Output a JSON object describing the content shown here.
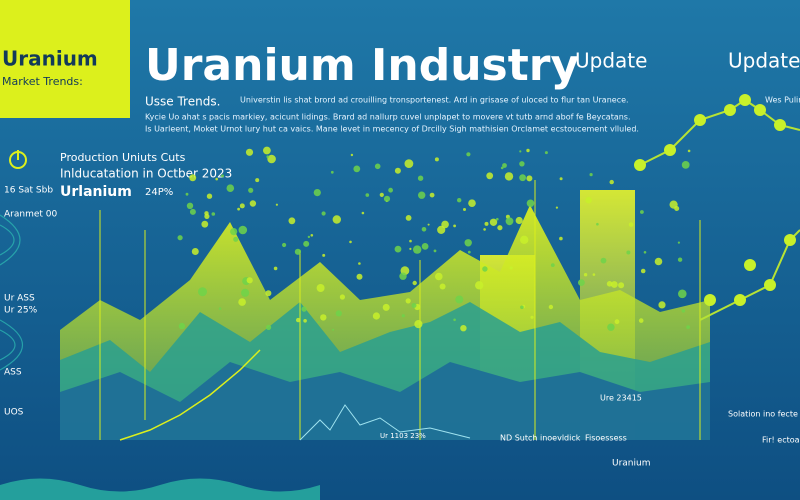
{
  "sidebar_box": {
    "title": "Uranium",
    "subtitle": "Market Trends:"
  },
  "header": {
    "title": "Uranium Industry",
    "tag": "Update",
    "tag_right": "Update"
  },
  "intro": {
    "heading": "Usse Trends.",
    "lines": [
      "Universtin lis shat brord ad crouilling tronsportenest. Ard in grisase of uloced to flur tan Uranece.",
      "Kycie Uo ahat s pacis markiey, acicunt lidings. Brard ad nallurp cuvel unplapet to movere vt tutb arnd abof fe Beycatans.",
      "Is Uarleent, Moket Urnot lury hut ca vaics. Mane levet in mecency of Drcilly Sigh mathisien Orclamet ecstoucement vlluled."
    ]
  },
  "chart_panel": {
    "title": "Production Uniuts Cuts",
    "subtitle": "Inlducatation in Octber 2023",
    "label": "Urlanium",
    "badge": "24P%",
    "corner_label": "Wes Pulin"
  },
  "side_labels": [
    "16 Sat Sbb",
    "Aranmet 00",
    "Ur ASS",
    "Ur 25%",
    "ASS",
    "UOS"
  ],
  "annotations": [
    "Ur 1103 23%",
    "ND Sutch inoevldick",
    "Fisoessess",
    "Ure 23415",
    "Solation ino fecte",
    "Fir! ectoal",
    "Uranium"
  ]
}
